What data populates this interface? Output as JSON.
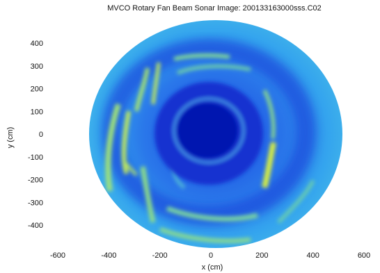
{
  "chart_data": {
    "type": "heatmap",
    "title": "MVCO Rotary Fan Beam Sonar Image:  200133163000sss.C02",
    "xlabel": "x (cm)",
    "ylabel": "y (cm)",
    "xlim": [
      -600,
      600
    ],
    "ylim": [
      -460,
      460
    ],
    "x_ticks": [
      -600,
      -400,
      -200,
      0,
      200,
      400,
      600
    ],
    "y_ticks": [
      400,
      300,
      200,
      100,
      0,
      -100,
      -200,
      -300,
      -400
    ],
    "colormap": "jet",
    "grid": false,
    "image_extent": {
      "x_radius_cm": 520,
      "y_radius_cm": 470,
      "center": [
        0,
        0
      ]
    },
    "colors": {
      "background_intensity": "#2f8fe8",
      "low_intensity": "#0b1fd0",
      "high_intensity": "#d8f040"
    }
  }
}
